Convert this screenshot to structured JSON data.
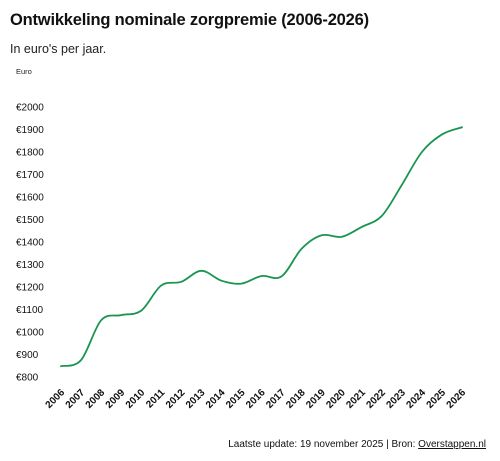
{
  "title": "Ontwikkeling nominale zorgpremie (2006-2026)",
  "subtitle": "In euro's per jaar.",
  "chart_data": {
    "type": "line",
    "title": "Ontwikkeling nominale zorgpremie (2006-2026)",
    "subtitle": "In euro's per jaar.",
    "ylabel": "Euro",
    "xlabel": "",
    "x": [
      2006,
      2007,
      2008,
      2009,
      2010,
      2011,
      2012,
      2013,
      2014,
      2015,
      2016,
      2017,
      2018,
      2019,
      2020,
      2021,
      2022,
      2023,
      2024,
      2025,
      2026
    ],
    "series": [
      {
        "values": [
          848,
          875,
          1052,
          1075,
          1095,
          1207,
          1223,
          1272,
          1228,
          1215,
          1249,
          1247,
          1370,
          1430,
          1423,
          1467,
          1516,
          1654,
          1800,
          1878,
          1910
        ]
      }
    ],
    "ylim": [
      800,
      2000
    ],
    "yticks": [
      800,
      900,
      1000,
      1100,
      1200,
      1300,
      1400,
      1500,
      1600,
      1700,
      1800,
      1900,
      2000
    ],
    "ytick_labels": [
      "€800",
      "€900",
      "€1000",
      "€1100",
      "€1200",
      "€1300",
      "€1400",
      "€1500",
      "€1600",
      "€1700",
      "€1800",
      "€1900",
      "€2000"
    ],
    "xtick_labels": [
      "2006",
      "2007",
      "2008",
      "2009",
      "2010",
      "2011",
      "2012",
      "2013",
      "2014",
      "2015",
      "2016",
      "2017",
      "2018",
      "2019",
      "2020",
      "2021",
      "2022",
      "2023",
      "2024",
      "2025",
      "2026"
    ],
    "line_color": "#1a9550",
    "grid": false,
    "legend": false
  },
  "footer": {
    "prefix": "Laatste update:  19 november 2025 | Bron: ",
    "source": "Overstappen.nl"
  }
}
